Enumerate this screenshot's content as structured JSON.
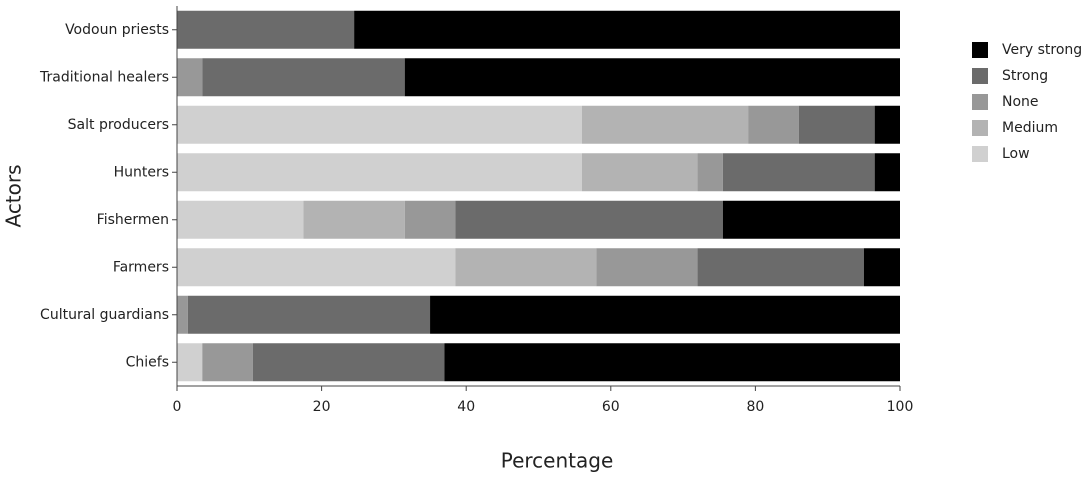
{
  "chart_data": {
    "type": "stacked_bar_horizontal",
    "x_label": "Percentage",
    "y_label": "Actors",
    "categories": [
      "Vodoun priests",
      "Traditional healers",
      "Salt producers",
      "Hunters",
      "Fishermen",
      "Farmers",
      "Cultural guardians",
      "Chiefs"
    ],
    "series": [
      {
        "name": "Low",
        "color": "#d0d0d0",
        "values": [
          0,
          0,
          56,
          56,
          17.5,
          38.5,
          0,
          3.5
        ]
      },
      {
        "name": "Medium",
        "color": "#b3b3b3",
        "values": [
          0,
          0,
          23,
          16,
          14,
          19.5,
          0,
          0
        ]
      },
      {
        "name": "None",
        "color": "#989898",
        "values": [
          0,
          3.5,
          7,
          3.5,
          7,
          14,
          1.5,
          7
        ]
      },
      {
        "name": "Strong",
        "color": "#6b6b6b",
        "values": [
          24.5,
          28,
          10.5,
          21,
          37,
          23,
          33.5,
          26.5
        ]
      },
      {
        "name": "Very strong",
        "color": "#000000",
        "values": [
          75.5,
          68.5,
          3.5,
          3.5,
          24.5,
          5,
          65,
          63
        ]
      }
    ],
    "xlim": [
      0,
      100
    ],
    "xticks": [
      0,
      20,
      40,
      60,
      80,
      100
    ]
  }
}
